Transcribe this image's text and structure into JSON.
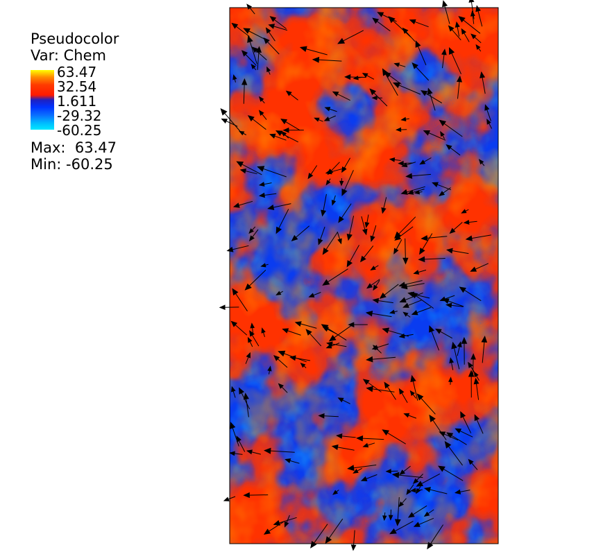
{
  "legend": {
    "title": "Pseudocolor",
    "var_label": "Var: Chem",
    "ticks": [
      "63.47",
      "32.54",
      "1.611",
      "-29.32",
      "-60.25"
    ],
    "max_label": "Max:  63.47",
    "min_label": "Min: -60.25"
  },
  "colors": {
    "high": "#ffff00",
    "mid_high": "#ff3a00",
    "mid": "#1a1aa8",
    "mid_low": "#0033ff",
    "low": "#00e8ff",
    "vector": "#000000"
  },
  "plot": {
    "type": "pseudocolor field with velocity vectors",
    "variable": "Chem",
    "data_range": [
      -60.25,
      63.47
    ]
  }
}
